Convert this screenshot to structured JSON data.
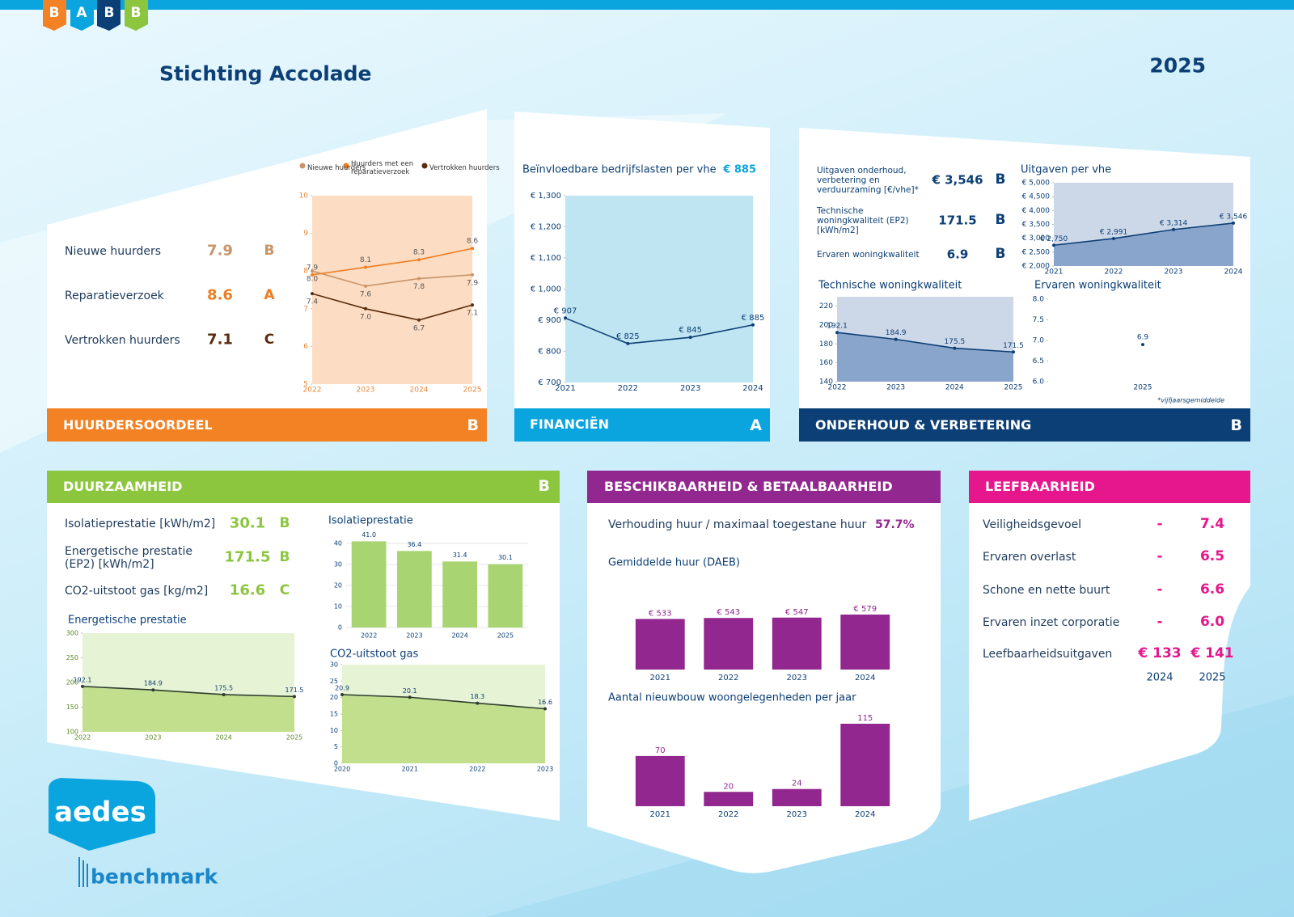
{
  "header": {
    "logo": [
      "B",
      "A",
      "B",
      "B"
    ],
    "title": "Stichting Accolade",
    "year": "2025"
  },
  "huurdersoordeel": {
    "heading": "HUURDERSOORDEEL",
    "grade": "B",
    "rows": [
      {
        "label": "Nieuwe huurders",
        "value": "7.9",
        "grade": "B"
      },
      {
        "label": "Reparatieverzoek",
        "value": "8.6",
        "grade": "A"
      },
      {
        "label": "Vertrokken huurders",
        "value": "7.1",
        "grade": "C"
      }
    ]
  },
  "financien": {
    "heading": "FINANCIËN",
    "grade": "A",
    "kpi": "€ 885"
  },
  "onderhoud": {
    "heading": "ONDERHOUD & VERBETERING",
    "grade": "B",
    "rows": [
      {
        "label": "Uitgaven onderhoud, verbetering en verduurzaming [€/vhe]*",
        "value": "€ 3,546",
        "grade": "B"
      },
      {
        "label": "Technische woningkwaliteit (EP2) [kWh/m2]",
        "value": "171.5",
        "grade": "B"
      },
      {
        "label": "Ervaren woningkwaliteit",
        "value": "6.9",
        "grade": "B"
      }
    ]
  },
  "duurzaamheid": {
    "heading": "DUURZAAMHEID",
    "grade": "B",
    "rows": [
      {
        "label": "Isolatieprestatie [kWh/m2]",
        "value": "30.1",
        "grade": "B"
      },
      {
        "label": "Energetische prestatie (EP2) [kWh/m2]",
        "value": "171.5",
        "grade": "B"
      },
      {
        "label": "CO2-uitstoot gas [kg/m2]",
        "value": "16.6",
        "grade": "C"
      }
    ]
  },
  "beschikbaarheid": {
    "heading": "BESCHIKBAARHEID & BETAALBAARHEID",
    "ratio_label": "Verhouding huur / maximaal toegestane huur",
    "ratio": "57.7%"
  },
  "leefbaarheid": {
    "heading": "LEEFBAARHEID",
    "rows": [
      {
        "label": "Veiligheidsgevoel",
        "v2024": "-",
        "v2025": "7.4"
      },
      {
        "label": "Ervaren overlast",
        "v2024": "-",
        "v2025": "6.5"
      },
      {
        "label": "Schone en nette buurt",
        "v2024": "-",
        "v2025": "6.6"
      },
      {
        "label": "Ervaren inzet corporatie",
        "v2024": "-",
        "v2025": "6.0"
      },
      {
        "label": "Leefbaarheidsuitgaven",
        "v2024": "€ 133",
        "v2025": "€ 141"
      }
    ],
    "years": [
      "2024",
      "2025"
    ]
  },
  "footer": {
    "logo": "aedes",
    "brand": "benchmark"
  },
  "chart_data": [
    {
      "type": "line",
      "categories": [
        "2022",
        "2023",
        "2024",
        "2025"
      ],
      "legend": "top",
      "series": [
        {
          "name": "Nieuwe huurders",
          "color": "#c8956a",
          "values": [
            8.0,
            7.6,
            7.8,
            7.9
          ],
          "value_labels": [
            "8.0",
            "7.6",
            "7.8",
            "7.9"
          ]
        },
        {
          "name": "Huurders met een reparatieverzoek",
          "color": "#ee7d22",
          "values": [
            7.9,
            8.1,
            8.3,
            8.6
          ],
          "value_labels": [
            "7.9",
            "8.1",
            "8.3",
            "8.6"
          ]
        },
        {
          "name": "Vertrokken huurders",
          "color": "#5b2c0f",
          "values": [
            7.4,
            7.0,
            6.7,
            7.1
          ],
          "value_labels": [
            "7.4",
            "7.0",
            "6.7",
            "7.1"
          ]
        }
      ],
      "ylim": [
        5,
        10
      ],
      "yticks": [
        5,
        6,
        7,
        8,
        9,
        10
      ]
    },
    {
      "type": "line",
      "title": "Beïnvloedbare bedrijfslasten per vhe",
      "categories": [
        "2021",
        "2022",
        "2023",
        "2024"
      ],
      "values": [
        907,
        825,
        845,
        885
      ],
      "value_labels": [
        "€ 907",
        "€ 825",
        "€ 845",
        "€ 885"
      ],
      "color": "#0c3f75",
      "ylim": [
        700,
        1300
      ],
      "yticks": [
        {
          "value": 700,
          "label": "€ 700"
        },
        {
          "value": 800,
          "label": "€ 800"
        },
        {
          "value": 900,
          "label": "€ 900"
        },
        {
          "value": 1000,
          "label": "€ 1,000"
        },
        {
          "value": 1100,
          "label": "€ 1,100"
        },
        {
          "value": 1200,
          "label": "€ 1,200"
        },
        {
          "value": 1300,
          "label": "€ 1,300"
        }
      ]
    },
    {
      "type": "line",
      "title": "Uitgaven per vhe",
      "categories": [
        "2021",
        "2022",
        "2023",
        "2024"
      ],
      "values": [
        2750,
        2991,
        3314,
        3546
      ],
      "value_labels": [
        "€ 2,750",
        "€ 2,991",
        "€ 3,314",
        "€ 3,546"
      ],
      "color": "#0c3f75",
      "area": true,
      "area_color": "#8aa5cc",
      "ylim": [
        2000,
        5000
      ],
      "yticks": [
        {
          "value": 2000,
          "label": "€ 2,000"
        },
        {
          "value": 2500,
          "label": "€ 2,500"
        },
        {
          "value": 3000,
          "label": "€ 3,000"
        },
        {
          "value": 3500,
          "label": "€ 3,500"
        },
        {
          "value": 4000,
          "label": "€ 4,000"
        },
        {
          "value": 4500,
          "label": "€ 4,500"
        },
        {
          "value": 5000,
          "label": "€ 5,000"
        }
      ]
    },
    {
      "type": "line",
      "title": "Technische woningkwaliteit",
      "categories": [
        "2022",
        "2023",
        "2024",
        "2025"
      ],
      "values": [
        192.1,
        184.9,
        175.5,
        171.5
      ],
      "color": "#0c3f75",
      "area": true,
      "area_color": "#8aa5cc",
      "ylim": [
        140,
        230
      ],
      "yticks": [
        140,
        160,
        180,
        200,
        220
      ]
    },
    {
      "type": "line",
      "title": "Ervaren woningkwaliteit",
      "categories": [
        "2025"
      ],
      "values": [
        6.9
      ],
      "color": "#0c3f75",
      "ylim": [
        6,
        8
      ],
      "yticks": [
        {
          "value": 6,
          "label": "6.0"
        },
        6.5,
        {
          "value": 7,
          "label": "7.0"
        },
        7.5,
        {
          "value": 8,
          "label": "8.0"
        }
      ],
      "note": "*vijfjaarsgemiddelde"
    },
    {
      "type": "bar",
      "title": "Isolatieprestatie",
      "categories": [
        "2022",
        "2023",
        "2024",
        "2025"
      ],
      "values": [
        41.0,
        36.4,
        31.4,
        30.1
      ],
      "value_labels": [
        "41.0",
        "36.4",
        "31.4",
        "30.1"
      ],
      "color": "#a8d472",
      "ylim": [
        0,
        40
      ],
      "yticks": [
        0,
        10,
        20,
        30,
        40
      ],
      "grid": true
    },
    {
      "type": "line",
      "title": "CO2-uitstoot gas",
      "categories": [
        "2020",
        "2021",
        "2022",
        "2023"
      ],
      "values": [
        20.9,
        20.1,
        18.3,
        16.6
      ],
      "color": "#2f3d2f",
      "area": true,
      "area_color": "#c2df8e",
      "ylim": [
        0,
        30
      ],
      "yticks": [
        0,
        5,
        10,
        15,
        20,
        25,
        30
      ]
    },
    {
      "type": "line",
      "title": "Energetische prestatie",
      "categories": [
        "2022",
        "2023",
        "2024",
        "2025"
      ],
      "values": [
        192.1,
        184.9,
        175.5,
        171.5
      ],
      "color": "#2f3d2f",
      "area": true,
      "area_color": "#c2df8e",
      "ylim": [
        100,
        300
      ],
      "yticks": [
        100,
        150,
        200,
        250,
        300
      ]
    },
    {
      "type": "bar",
      "title": "Gemiddelde huur (DAEB)",
      "categories": [
        "2021",
        "2022",
        "2023",
        "2024"
      ],
      "values": [
        533,
        543,
        547,
        579
      ],
      "value_labels": [
        "€ 533",
        "€ 543",
        "€ 547",
        "€ 579"
      ],
      "color": "#92278f"
    },
    {
      "type": "bar",
      "title": "Aantal nieuwbouw woongelegenheden per jaar",
      "categories": [
        "2021",
        "2022",
        "2023",
        "2024"
      ],
      "values": [
        70,
        20,
        24,
        115
      ],
      "color": "#92278f"
    }
  ]
}
